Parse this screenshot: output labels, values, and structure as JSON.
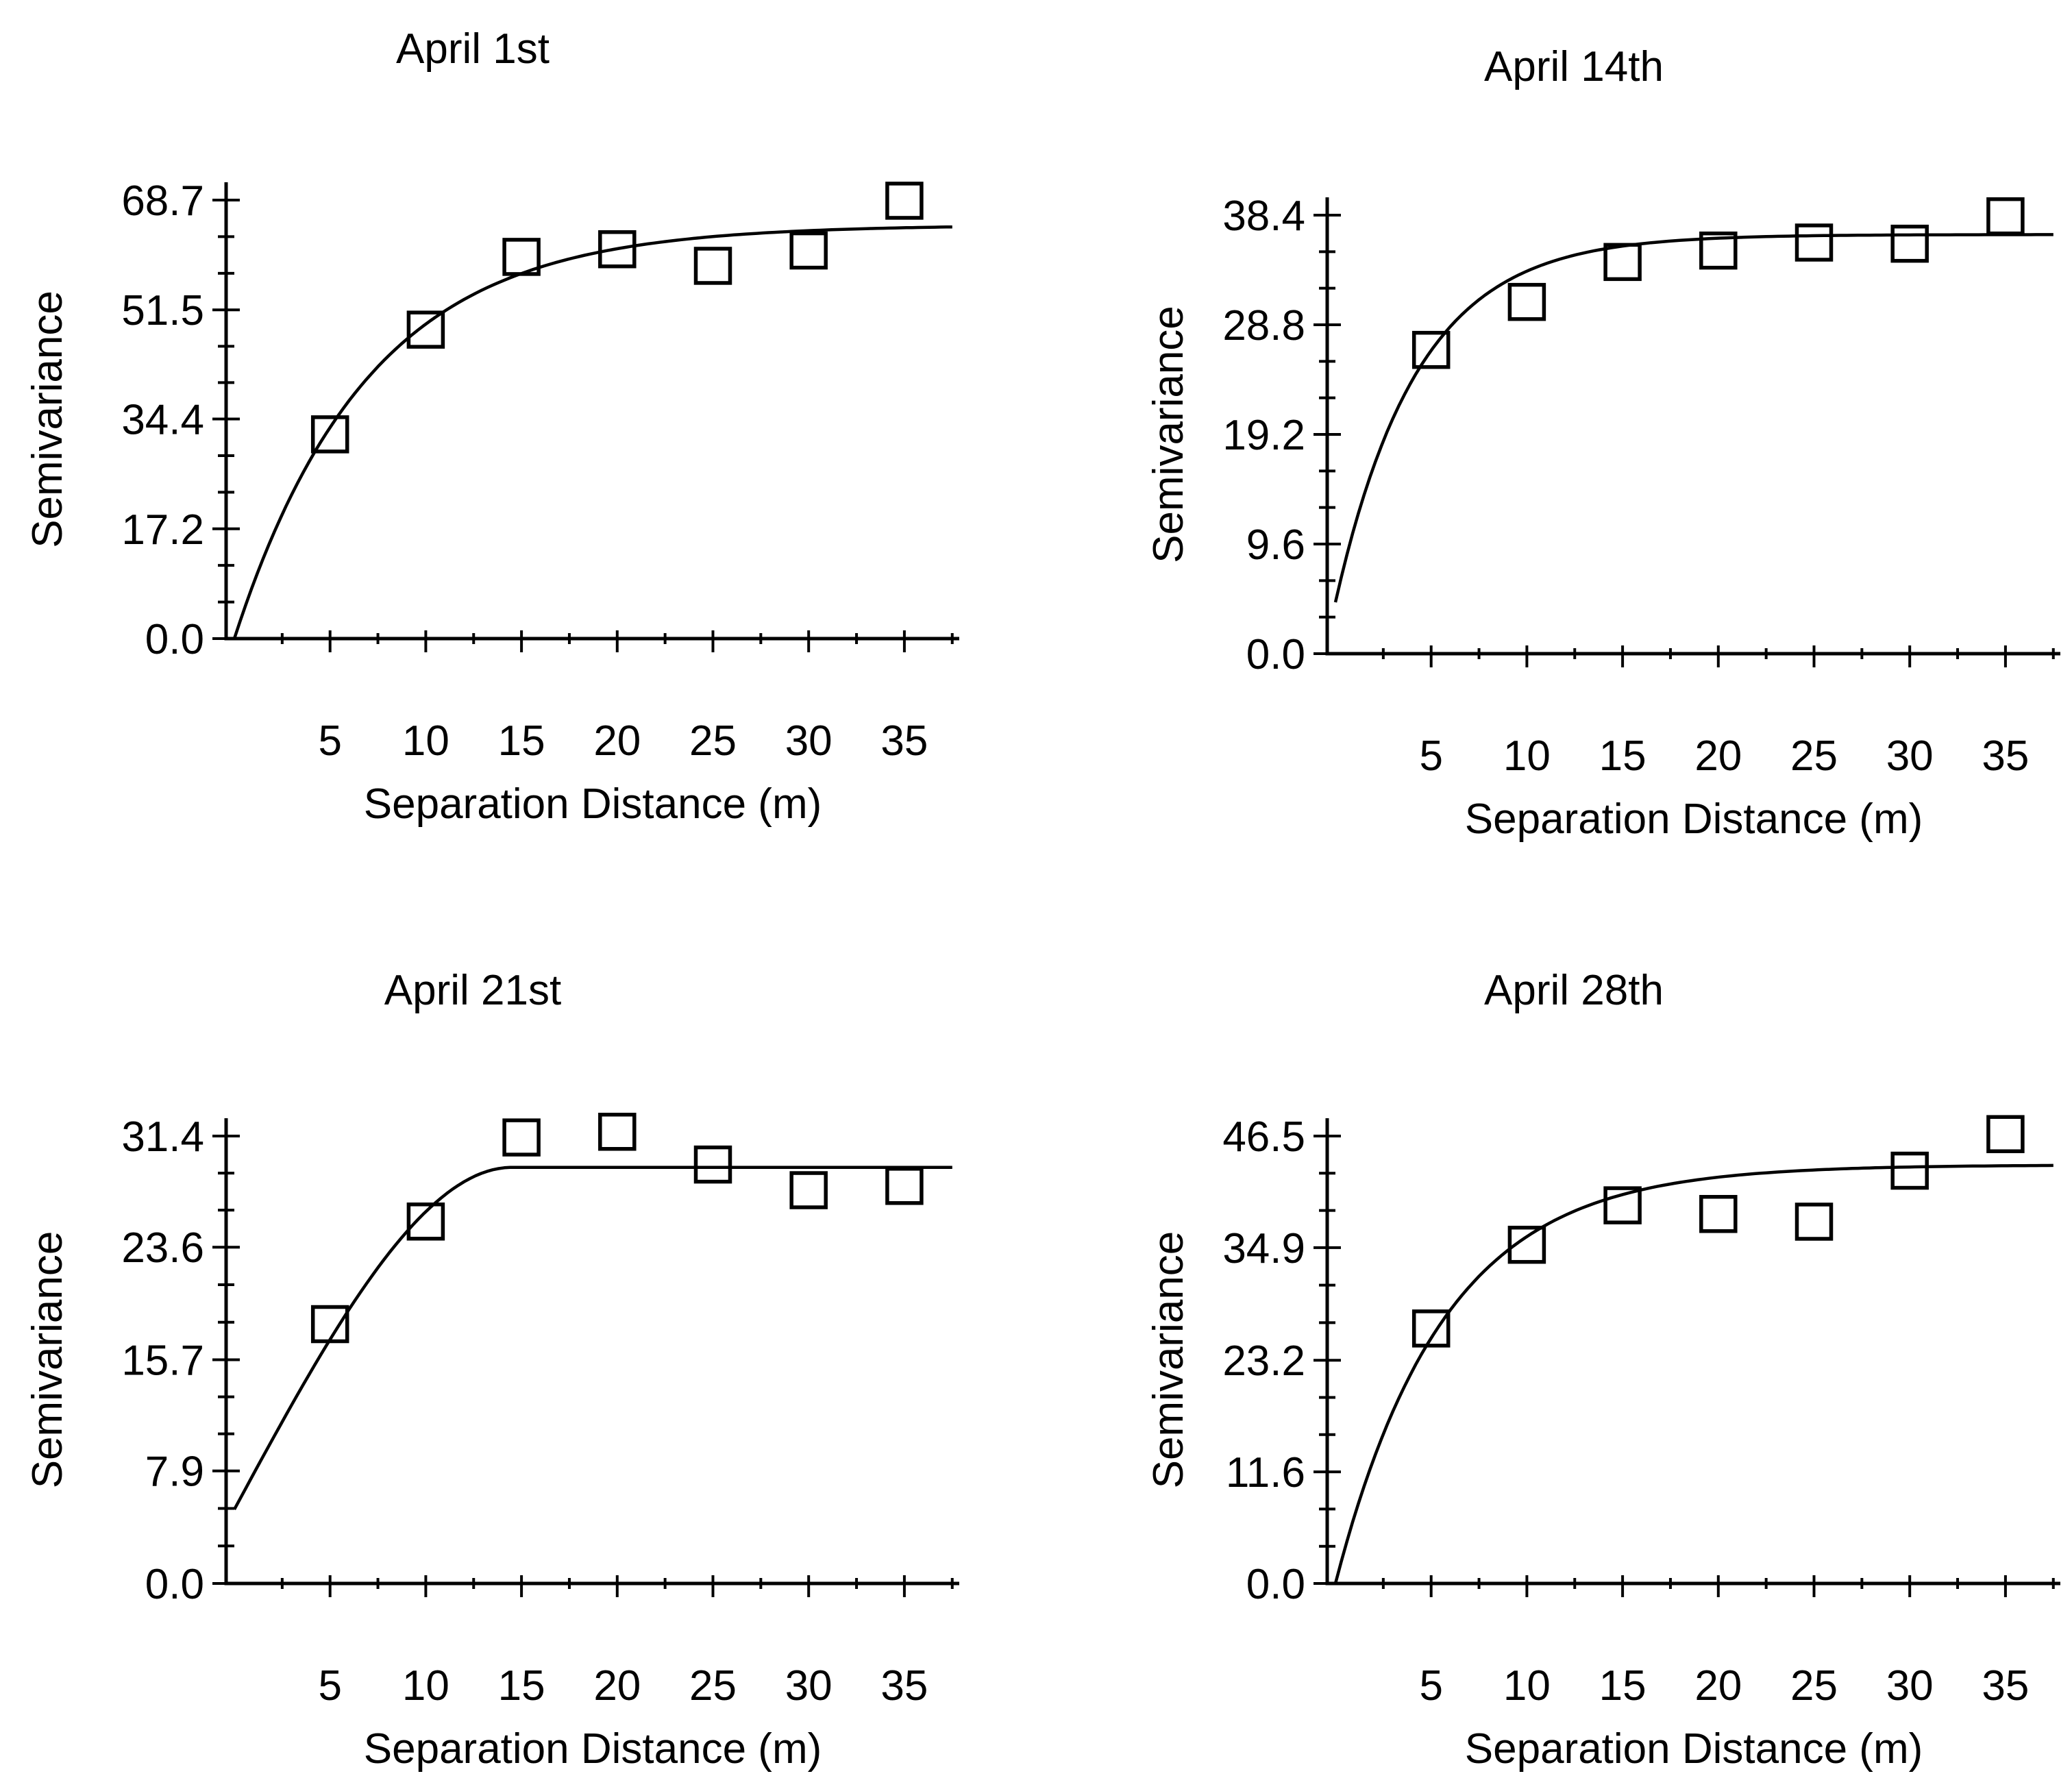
{
  "page": {
    "background": "#ffffff",
    "ink_color": "#000000",
    "figure_type": "semivariogram-panel-2x2"
  },
  "chart_data": [
    {
      "type": "scatter",
      "title": "April 1st",
      "xlabel": "Separation Distance (m)",
      "ylabel": "Semivariance",
      "x": [
        5,
        10,
        15,
        20,
        25,
        30,
        35
      ],
      "y": [
        32.0,
        48.4,
        59.8,
        61.0,
        58.4,
        60.8,
        68.6
      ],
      "xticks": {
        "values": [
          5,
          10,
          15,
          20,
          25,
          30,
          35
        ],
        "labels": [
          "5",
          "10",
          "15",
          "20",
          "25",
          "30",
          "35"
        ]
      },
      "yticks": {
        "values": [
          0,
          17.2,
          34.4,
          51.5,
          68.7
        ],
        "labels": [
          "0.0",
          "17.2",
          "34.4",
          "51.5",
          "68.7"
        ]
      },
      "xlim": [
        0,
        37.9
      ],
      "ylim": [
        0,
        68.7
      ],
      "x_minor_ticks": [
        2.5,
        7.5,
        12.5,
        17.5,
        22.5,
        27.5,
        32.5,
        37.5
      ],
      "y_minor_per_interval": 2,
      "grid": false,
      "legend": null,
      "marker": {
        "shape": "open-square",
        "size": 50,
        "color": "#000000"
      },
      "fit_curve": {
        "model": "exponential",
        "nugget": 0,
        "sill": 64.8,
        "range": 21
      }
    },
    {
      "type": "scatter",
      "title": "April 14th",
      "xlabel": "Separation Distance (m)",
      "ylabel": "Semivariance",
      "x": [
        5,
        10,
        15,
        20,
        25,
        30,
        35
      ],
      "y": [
        26.6,
        30.8,
        34.3,
        35.3,
        36.0,
        35.9,
        38.3
      ],
      "xticks": {
        "values": [
          5,
          10,
          15,
          20,
          25,
          30,
          35
        ],
        "labels": [
          "5",
          "10",
          "15",
          "20",
          "25",
          "30",
          "35"
        ]
      },
      "yticks": {
        "values": [
          0,
          9.6,
          19.2,
          28.8,
          38.4
        ],
        "labels": [
          "0.0",
          "9.6",
          "19.2",
          "28.8",
          "38.4"
        ]
      },
      "xlim": [
        0,
        37.9
      ],
      "ylim": [
        0,
        38.4
      ],
      "x_minor_ticks": [
        2.5,
        7.5,
        12.5,
        17.5,
        22.5,
        27.5,
        32.5,
        37.5
      ],
      "y_minor_per_interval": 2,
      "grid": false,
      "legend": null,
      "marker": {
        "shape": "open-square",
        "size": 50,
        "color": "#000000"
      },
      "fit_curve": {
        "model": "exponential",
        "nugget": 4.5,
        "sill": 36.7,
        "range": 13
      }
    },
    {
      "type": "scatter",
      "title": "April 21st",
      "xlabel": "Separation Distance (m)",
      "ylabel": "Semivariance",
      "x": [
        5,
        10,
        15,
        20,
        25,
        30,
        35
      ],
      "y": [
        18.2,
        25.4,
        31.3,
        31.7,
        29.4,
        27.6,
        27.9
      ],
      "xticks": {
        "values": [
          5,
          10,
          15,
          20,
          25,
          30,
          35
        ],
        "labels": [
          "5",
          "10",
          "15",
          "20",
          "25",
          "30",
          "35"
        ]
      },
      "yticks": {
        "values": [
          0,
          7.9,
          15.7,
          23.6,
          31.4
        ],
        "labels": [
          "0.0",
          "7.9",
          "15.7",
          "23.6",
          "31.4"
        ]
      },
      "xlim": [
        0,
        37.9
      ],
      "ylim": [
        0,
        31.4
      ],
      "x_minor_ticks": [
        2.5,
        7.5,
        12.5,
        17.5,
        22.5,
        27.5,
        32.5,
        37.5
      ],
      "y_minor_per_interval": 2,
      "grid": false,
      "legend": null,
      "marker": {
        "shape": "open-square",
        "size": 50,
        "color": "#000000"
      },
      "fit_curve": {
        "model": "spherical",
        "nugget": 5.2,
        "sill": 29.2,
        "range": 14.5
      }
    },
    {
      "type": "scatter",
      "title": "April 28th",
      "xlabel": "Separation Distance (m)",
      "ylabel": "Semivariance",
      "x": [
        5,
        10,
        15,
        20,
        25,
        30,
        35
      ],
      "y": [
        26.5,
        35.2,
        39.3,
        38.4,
        37.6,
        42.9,
        46.7
      ],
      "xticks": {
        "values": [
          5,
          10,
          15,
          20,
          25,
          30,
          35
        ],
        "labels": [
          "5",
          "10",
          "15",
          "20",
          "25",
          "30",
          "35"
        ]
      },
      "yticks": {
        "values": [
          0,
          11.6,
          23.2,
          34.9,
          46.5
        ],
        "labels": [
          "0.0",
          "11.6",
          "23.2",
          "34.9",
          "46.5"
        ]
      },
      "xlim": [
        0,
        37.9
      ],
      "ylim": [
        0,
        46.5
      ],
      "x_minor_ticks": [
        2.5,
        7.5,
        12.5,
        17.5,
        22.5,
        27.5,
        32.5,
        37.5
      ],
      "y_minor_per_interval": 2,
      "grid": false,
      "legend": null,
      "marker": {
        "shape": "open-square",
        "size": 50,
        "color": "#000000"
      },
      "fit_curve": {
        "model": "exponential",
        "nugget": 0,
        "sill": 43.5,
        "range": 17
      }
    }
  ]
}
